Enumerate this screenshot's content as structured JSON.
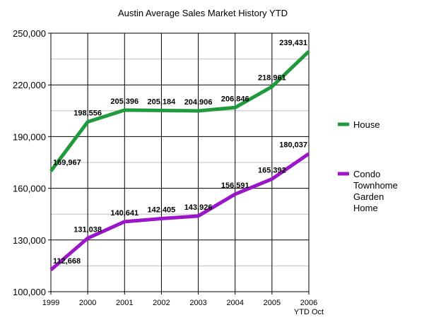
{
  "chart_data": {
    "type": "line",
    "title": "Austin Average Sales Market History YTD",
    "x": [
      "1999",
      "2000",
      "2001",
      "2002",
      "2003",
      "2004",
      "2005",
      "2006"
    ],
    "x_sublabels": [
      "",
      "",
      "",
      "",
      "",
      "",
      "",
      "YTD Oct"
    ],
    "ylim": [
      100000,
      250000
    ],
    "yticks": [
      100000,
      130000,
      160000,
      190000,
      220000,
      250000
    ],
    "ytick_labels": [
      "100,000",
      "130,000",
      "160,000",
      "190,000",
      "220,000",
      "250,000"
    ],
    "grid": true,
    "legend_position": "right",
    "series": [
      {
        "name": "House",
        "color": "#1f9a3c",
        "values": [
          169967,
          198556,
          205396,
          205184,
          204906,
          206846,
          218961,
          239431
        ],
        "labels": [
          "169,967",
          "198,556",
          "205,396",
          "205,184",
          "204,906",
          "206,846",
          "218,961",
          "239,431"
        ]
      },
      {
        "name": "Condo Townhome Garden Home",
        "legend_lines": [
          "Condo",
          "Townhome",
          "Garden",
          "Home"
        ],
        "color": "#9a16c8",
        "values": [
          112668,
          131038,
          140641,
          142405,
          143926,
          156591,
          165392,
          180037
        ],
        "labels": [
          "112,668",
          "131,038",
          "140,641",
          "142,405",
          "143,926",
          "156,591",
          "165,392",
          "180,037"
        ]
      }
    ]
  }
}
